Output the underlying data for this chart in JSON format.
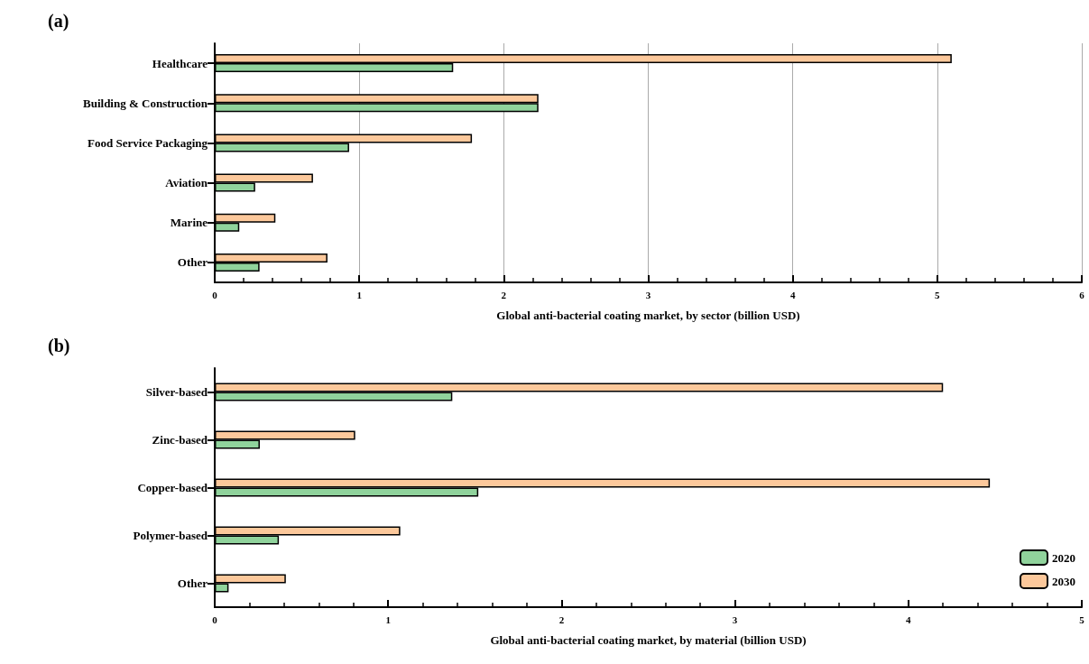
{
  "chart_data": [
    {
      "type": "bar",
      "title": "(a)",
      "orientation": "horizontal",
      "xlabel": "Global anti-bacterial coating market, by sector (billion USD)",
      "categories": [
        "Healthcare",
        "Building & Construction",
        "Food Service Packaging",
        "Aviation",
        "Marine",
        "Other"
      ],
      "series": [
        {
          "color": "#90d39c",
          "values": [
            1.65,
            2.24,
            0.93,
            0.28,
            0.17,
            0.31
          ]
        },
        {
          "color": "#fcc89b",
          "values": [
            5.1,
            2.24,
            1.78,
            0.68,
            0.42,
            0.78
          ]
        }
      ],
      "xlim": [
        0,
        6
      ],
      "xticks": [
        0,
        1,
        2,
        3,
        4,
        5,
        6
      ],
      "grid": "x",
      "legend": false
    },
    {
      "type": "bar",
      "title": "(b)",
      "orientation": "horizontal",
      "xlabel": "Global anti-bacterial coating market, by material (billion USD)",
      "categories": [
        "Silver-based",
        "Zinc-based",
        "Copper-based",
        "Polymer-based",
        "Other"
      ],
      "series": [
        {
          "name": "2020",
          "color": "#90d39c",
          "values": [
            1.37,
            0.26,
            1.52,
            0.37,
            0.08
          ]
        },
        {
          "name": "2030",
          "color": "#fcc89b",
          "values": [
            4.2,
            0.81,
            4.47,
            1.07,
            0.41
          ]
        }
      ],
      "xlim": [
        0,
        5
      ],
      "xticks": [
        0,
        1,
        2,
        3,
        4,
        5
      ],
      "grid": false,
      "legend": "bottom right"
    }
  ]
}
